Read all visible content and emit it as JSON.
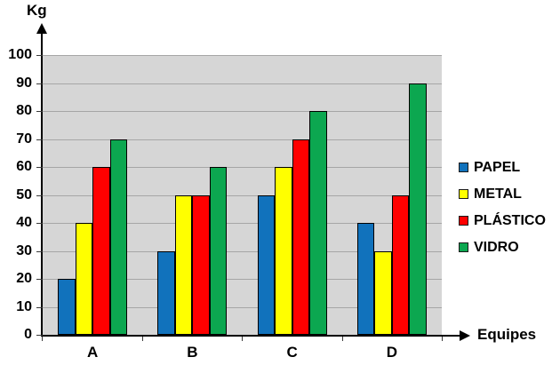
{
  "chart_data": {
    "type": "bar",
    "title": "",
    "y_axis_title": "Kg",
    "x_axis_title": "Equipes",
    "categories": [
      "A",
      "B",
      "C",
      "D"
    ],
    "series": [
      {
        "name": "PAPEL",
        "color": "#1172BC",
        "values": [
          20,
          30,
          50,
          40
        ]
      },
      {
        "name": "METAL",
        "color": "#FFFF00",
        "values": [
          40,
          50,
          60,
          30
        ]
      },
      {
        "name": "PLÁSTICO",
        "color": "#FF0000",
        "values": [
          60,
          50,
          70,
          50
        ]
      },
      {
        "name": "VIDRO",
        "color": "#0CA750",
        "values": [
          70,
          60,
          80,
          90
        ]
      }
    ],
    "ylim": [
      0,
      100
    ],
    "y_tick_step": 10,
    "y_tick_labels": [
      "0",
      "10",
      "20",
      "30",
      "40",
      "50",
      "60",
      "70",
      "80",
      "90",
      "100"
    ],
    "grid": true,
    "legend_position": "right",
    "plot_background": "#D6D6D6",
    "gridline_color": "#A6A6A6",
    "axis_color": "#000000",
    "text_color": "#000000"
  }
}
